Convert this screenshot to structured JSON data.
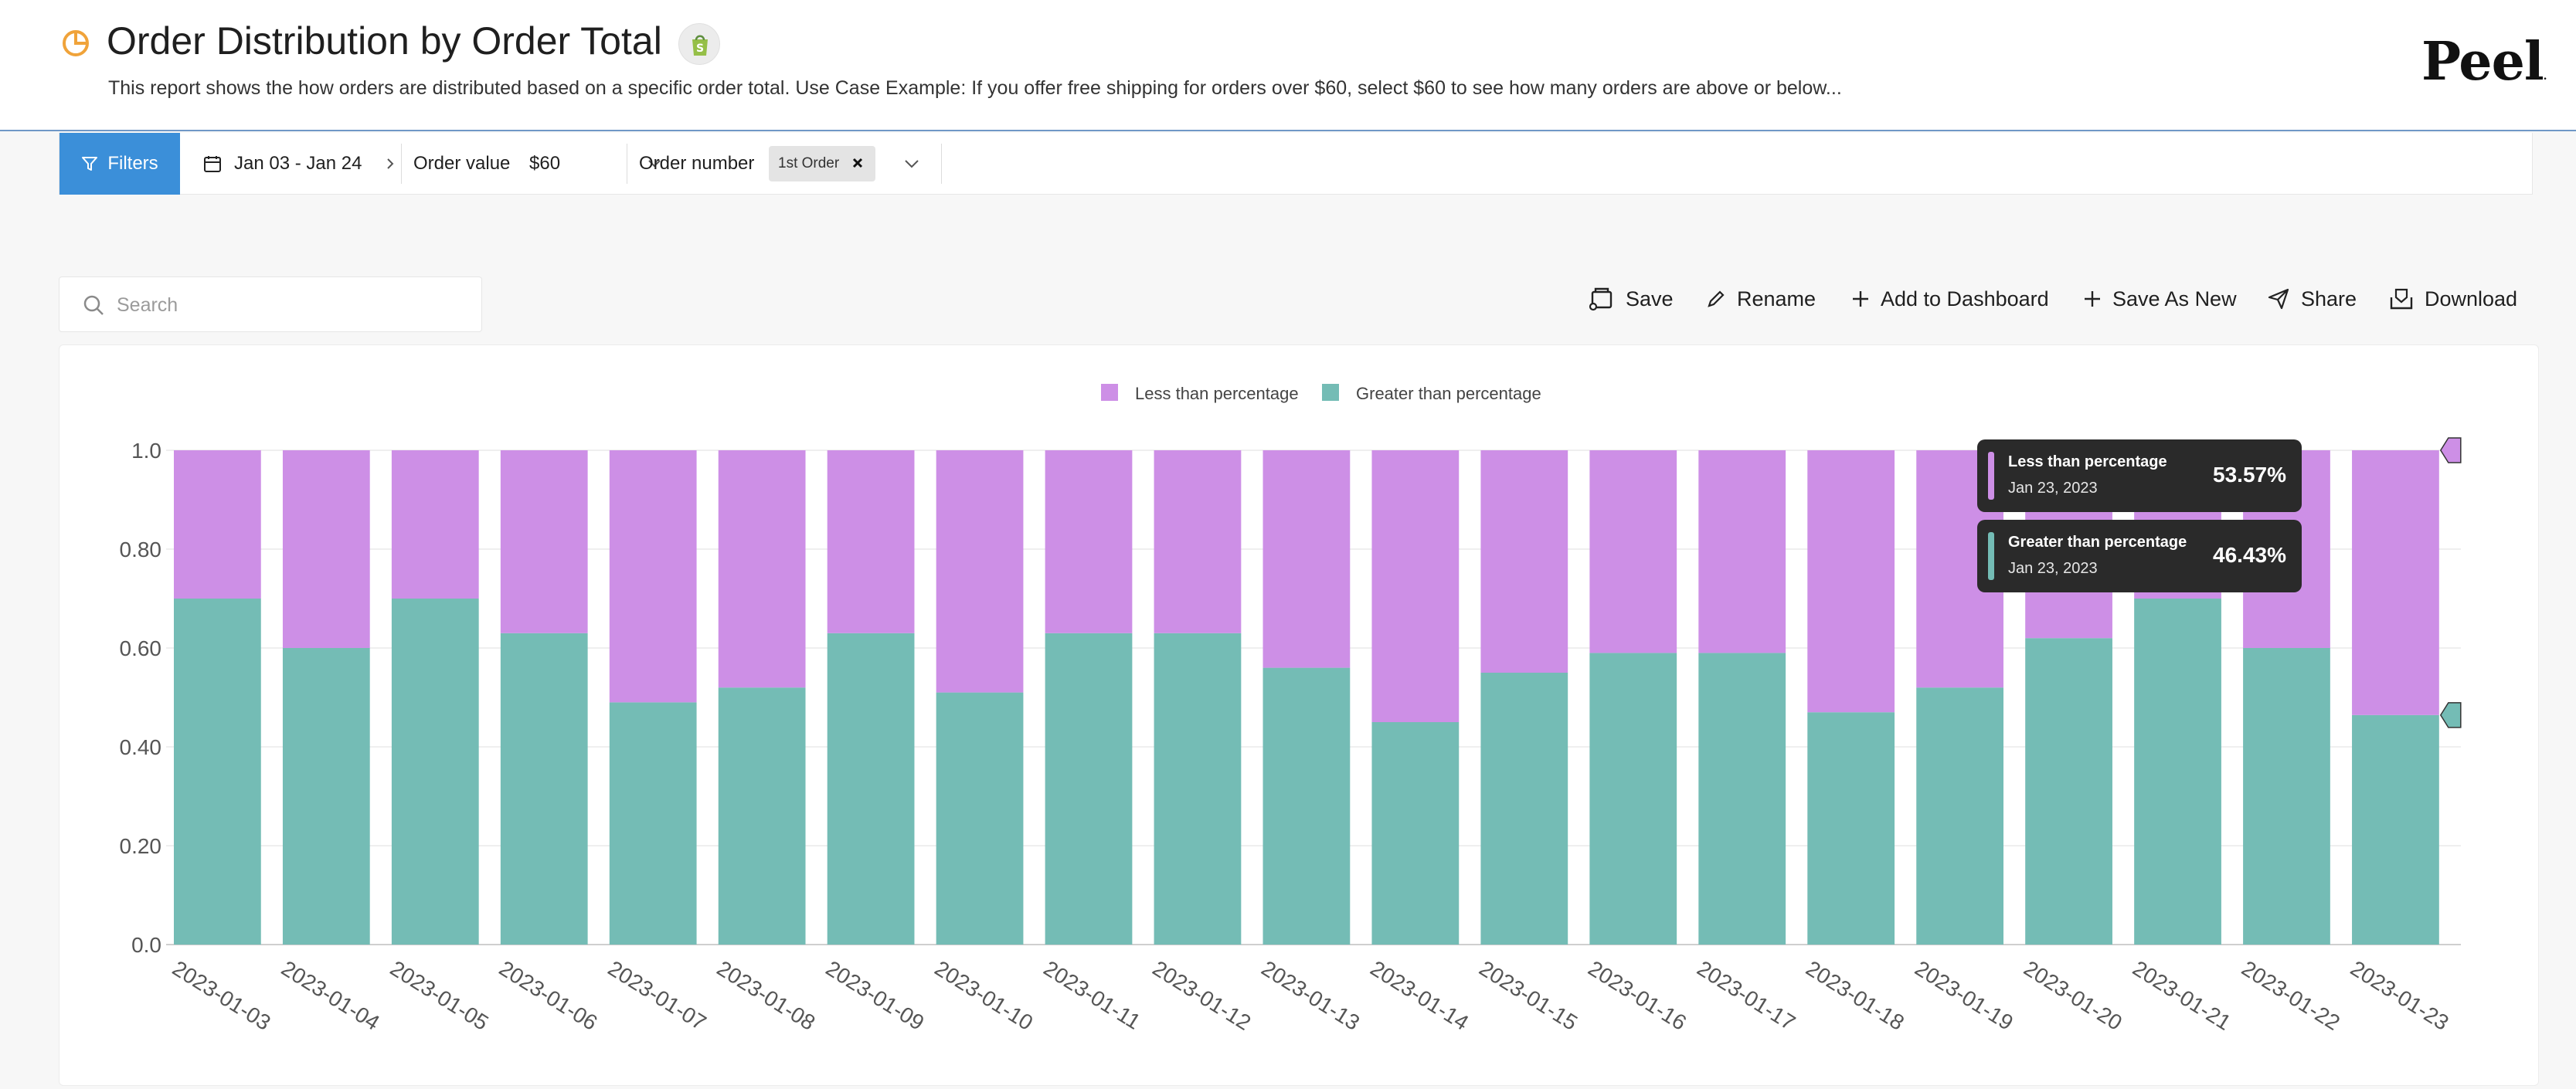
{
  "header": {
    "title": "Order Distribution by Order Total",
    "description": "This report shows the how orders are distributed based on a specific order total. Use Case Example: If you offer free shipping for orders over $60, select $60 to see how many orders are above or below...",
    "brand": "Peel",
    "brand_mark": ".",
    "report_icon": "pie-chart-icon",
    "platform_icon": "shopify-bag-icon"
  },
  "filters": {
    "button_label": "Filters",
    "date_range": "Jan 03 - Jan 24",
    "order_value_label": "Order value",
    "order_value": "$60",
    "order_number_label": "Order number",
    "order_number_chip": "1st Order"
  },
  "toolbar": {
    "search_placeholder": "Search",
    "save": "Save",
    "rename": "Rename",
    "add_to_dashboard": "Add to Dashboard",
    "save_as_new": "Save As New",
    "share": "Share",
    "download": "Download"
  },
  "tooltip": {
    "items": [
      {
        "name": "Less than percentage",
        "date": "Jan 23, 2023",
        "value": "53.57%"
      },
      {
        "name": "Greater than percentage",
        "date": "Jan 23, 2023",
        "value": "46.43%"
      }
    ]
  },
  "colors": {
    "accent": "#3b8fd9",
    "less": "#cd8fe6",
    "greater": "#74bcb5",
    "report_icon": "#f0a33a",
    "shopify": "#95bf47"
  },
  "chart_data": {
    "type": "bar",
    "stacked": true,
    "categories": [
      "2023-01-03",
      "2023-01-04",
      "2023-01-05",
      "2023-01-06",
      "2023-01-07",
      "2023-01-08",
      "2023-01-09",
      "2023-01-10",
      "2023-01-11",
      "2023-01-12",
      "2023-01-13",
      "2023-01-14",
      "2023-01-15",
      "2023-01-16",
      "2023-01-17",
      "2023-01-18",
      "2023-01-19",
      "2023-01-20",
      "2023-01-21",
      "2023-01-22",
      "2023-01-23"
    ],
    "series": [
      {
        "name": "Greater than percentage",
        "color": "#74bcb5",
        "values": [
          0.7,
          0.6,
          0.7,
          0.63,
          0.49,
          0.52,
          0.63,
          0.51,
          0.63,
          0.63,
          0.56,
          0.45,
          0.55,
          0.59,
          0.59,
          0.47,
          0.52,
          0.62,
          0.7,
          0.6,
          0.4643
        ]
      },
      {
        "name": "Less than percentage",
        "color": "#cd8fe6",
        "values": [
          0.3,
          0.4,
          0.3,
          0.37,
          0.51,
          0.48,
          0.37,
          0.49,
          0.37,
          0.37,
          0.44,
          0.55,
          0.45,
          0.41,
          0.41,
          0.53,
          0.48,
          0.38,
          0.3,
          0.4,
          0.5357
        ]
      }
    ],
    "legend_order": [
      "Less than percentage",
      "Greater than percentage"
    ],
    "y_ticks": [
      "0.0",
      "0.20",
      "0.40",
      "0.60",
      "0.80",
      "1.0"
    ],
    "ylim": [
      0,
      1
    ],
    "legend_position": "top-center",
    "grid": true
  }
}
